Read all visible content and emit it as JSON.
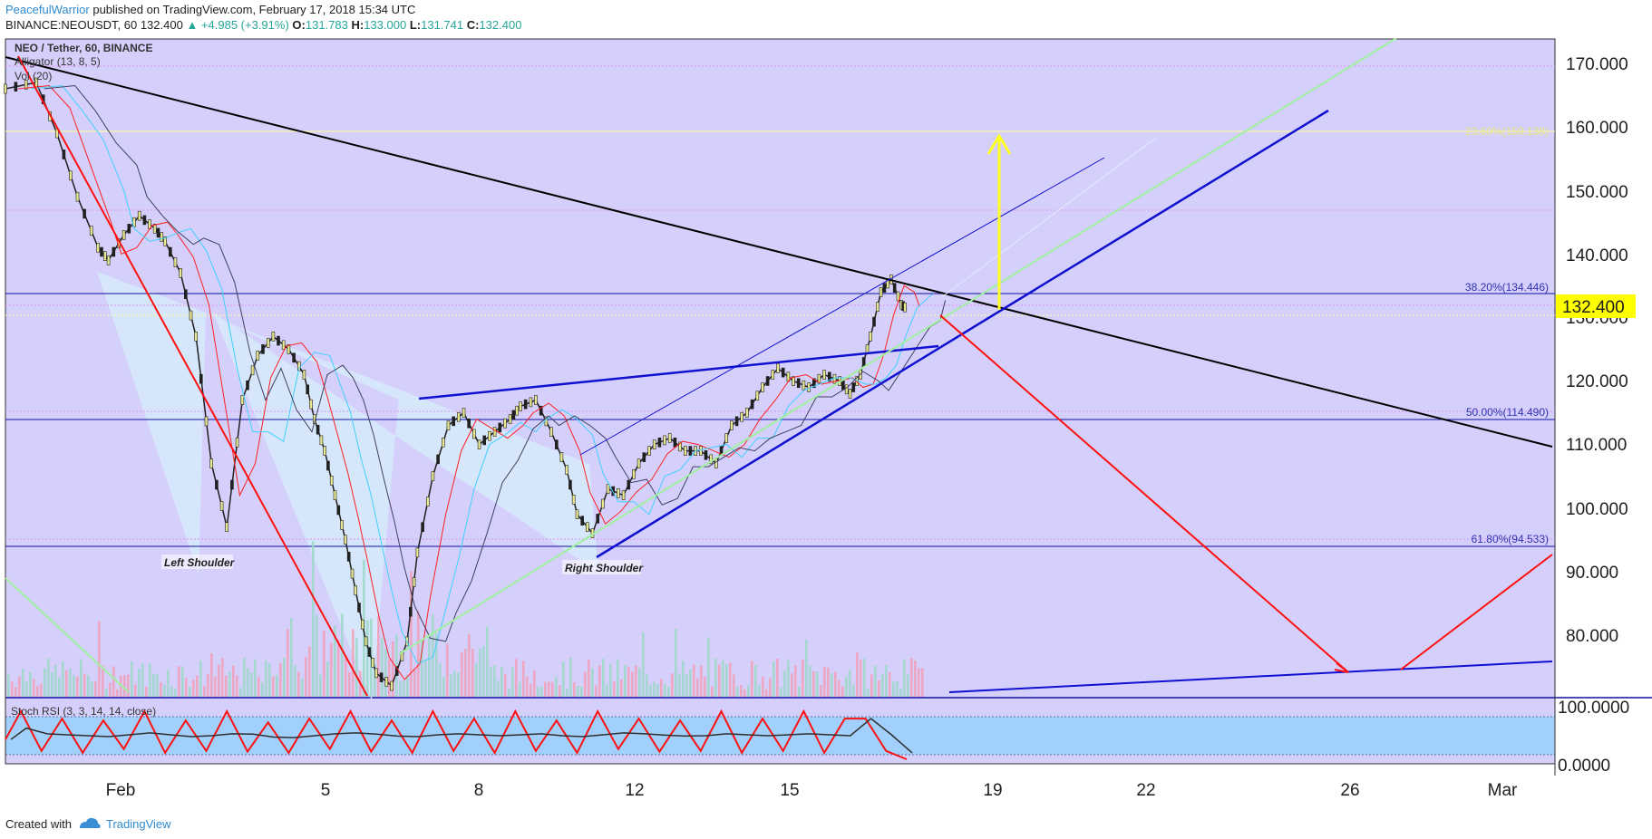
{
  "header": {
    "author": "PeacefulWarrior",
    "published": "published on TradingView.com, February 17, 2018 15:34 UTC",
    "symbol": "BINANCE:NEOUSDT, 60",
    "last": "132.400",
    "change": "▲ +4.985 (+3.91%)",
    "o_label": "O:",
    "o": "131.783",
    "h_label": "H:",
    "h": "133.000",
    "l_label": "L:",
    "l": "131.741",
    "c_label": "C:",
    "c": "132.400"
  },
  "legend": {
    "title": "NEO / Tether, 60, BINANCE",
    "line2": "Alligator (13, 8, 5)",
    "line3": "Vol (20)"
  },
  "stoch_label": "Stoch RSI (3, 3, 14, 14, close)",
  "price_tag": "132.400",
  "footer": {
    "created": "Created with",
    "brand": "TradingView"
  },
  "colors": {
    "chart_bg": "#d5d0fb",
    "stoch_band": "#a0d0fb",
    "price_tag_bg": "#ffff00",
    "trend_black": "#000000",
    "trend_blue": "#1010d0",
    "arrow_red": "#ff1010",
    "arrow_yellow": "#ffff20",
    "fib_line": "#e090f0",
    "hs_fill": "#d6e6fb"
  },
  "chart_data": {
    "type": "line",
    "title": "NEO / Tether, 60, BINANCE",
    "x_tick_labels": [
      "Feb",
      "5",
      "8",
      "12",
      "15",
      "19",
      "22",
      "26",
      "Mar"
    ],
    "y_tick_labels": [
      "170.000",
      "160.000",
      "150.000",
      "140.000",
      "130.000",
      "120.000",
      "110.000",
      "100.000",
      "90.000",
      "80.000"
    ],
    "ylim": [
      70.5,
      175.2
    ],
    "stoch_ticks": [
      "100.0000",
      "0.0000"
    ],
    "fib_levels": [
      {
        "label": "23.60%(159.138)",
        "value": 159.138
      },
      {
        "label": "38.20%(134.446)",
        "value": 134.446
      },
      {
        "label": "50.00%(114.490)",
        "value": 114.49
      },
      {
        "label": "61.80%(94.533)",
        "value": 94.533
      }
    ],
    "annotations": [
      "Left Shoulder",
      "Right Shoulder"
    ],
    "price_path": {
      "x": [
        0,
        0.6,
        1.0,
        1.4,
        1.8,
        2.0,
        2.3,
        2.6,
        2.9,
        3.1,
        3.4,
        3.7,
        4.0,
        4.3,
        4.6,
        4.9,
        5.2,
        5.5,
        5.8,
        6.0,
        6.2,
        6.4,
        6.6,
        6.8,
        7.0,
        7.2,
        7.5,
        7.8,
        8.0,
        8.3,
        8.6,
        8.9,
        9.2,
        9.5,
        9.8,
        10.0,
        10.3,
        10.6,
        10.9,
        11.1,
        11.4,
        11.7,
        12.0,
        12.3,
        12.6,
        12.9,
        13.2,
        13.5,
        13.8,
        14.1,
        14.4,
        14.7,
        15.0,
        15.3,
        15.6,
        15.9,
        16.2,
        16.4,
        16.6,
        16.8,
        17.0,
        17.2,
        17.4,
        17.5
      ],
      "y": [
        167,
        168,
        160,
        150,
        142,
        140,
        144,
        147,
        145,
        143,
        138,
        128,
        108,
        98,
        118,
        125,
        128,
        126,
        122,
        115,
        110,
        103,
        96,
        88,
        80,
        75,
        73,
        80,
        94,
        106,
        114,
        116,
        111,
        113,
        115,
        117,
        118,
        113,
        107,
        100,
        97,
        104,
        103,
        108,
        111,
        112,
        110,
        110,
        108,
        114,
        116,
        120,
        123,
        121,
        120,
        122,
        121,
        119,
        122,
        128,
        135,
        137,
        133,
        132.4
      ]
    },
    "stoch_rsi": {
      "x": [
        0,
        0.3,
        0.7,
        1.1,
        1.5,
        1.9,
        2.3,
        2.7,
        3.1,
        3.5,
        3.9,
        4.3,
        4.7,
        5.1,
        5.5,
        5.9,
        6.3,
        6.7,
        7.1,
        7.5,
        7.9,
        8.3,
        8.7,
        9.1,
        9.5,
        9.9,
        10.3,
        10.7,
        11.1,
        11.5,
        11.9,
        12.3,
        12.7,
        13.1,
        13.5,
        13.9,
        14.3,
        14.7,
        15.1,
        15.5,
        15.9,
        16.3,
        16.7,
        17.1,
        17.5
      ],
      "k": [
        40,
        100,
        10,
        95,
        5,
        90,
        15,
        100,
        5,
        90,
        10,
        100,
        8,
        85,
        5,
        95,
        15,
        100,
        8,
        90,
        5,
        100,
        10,
        95,
        5,
        100,
        10,
        90,
        5,
        100,
        15,
        95,
        8,
        90,
        10,
        100,
        5,
        95,
        10,
        100,
        5,
        95,
        95,
        10,
        0
      ]
    }
  }
}
